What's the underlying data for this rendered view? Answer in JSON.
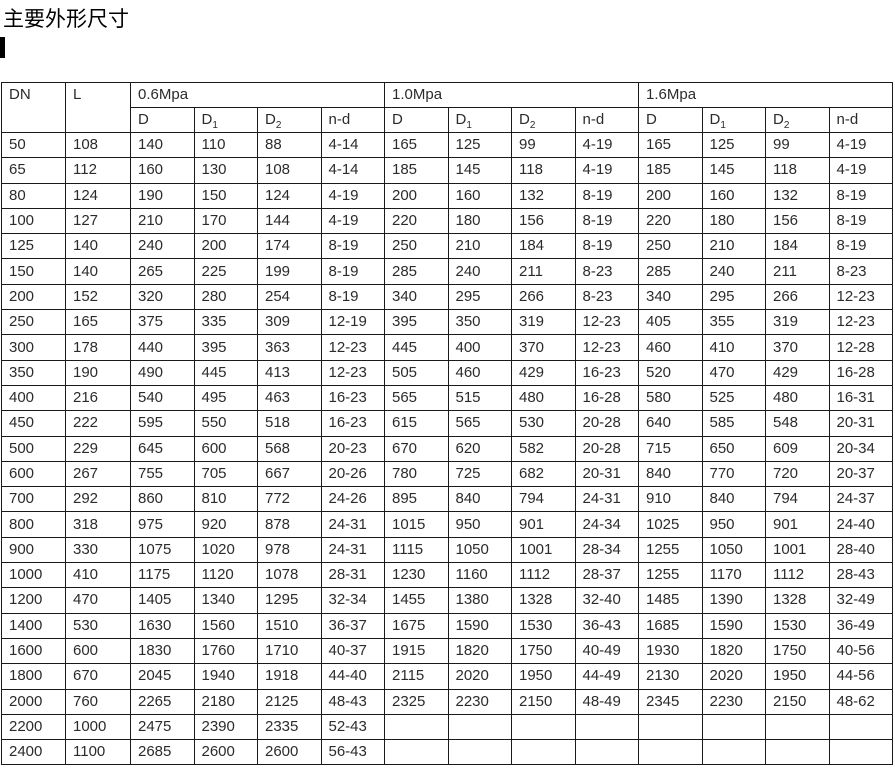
{
  "page": {
    "title": "主要外形尺寸"
  },
  "table": {
    "col_headers": {
      "dn": "DN",
      "l": "L",
      "groups": [
        {
          "label": "0.6Mpa"
        },
        {
          "label": "1.0Mpa"
        },
        {
          "label": "1.6Mpa"
        }
      ],
      "sub_cols": [
        {
          "base": "D",
          "sub": ""
        },
        {
          "base": "D",
          "sub": "1"
        },
        {
          "base": "D",
          "sub": "2"
        },
        {
          "base": "n-d",
          "sub": ""
        }
      ]
    },
    "rows": [
      [
        "50",
        "108",
        "140",
        "110",
        "88",
        "4-14",
        "165",
        "125",
        "99",
        "4-19",
        "165",
        "125",
        "99",
        "4-19"
      ],
      [
        "65",
        "112",
        "160",
        "130",
        "108",
        "4-14",
        "185",
        "145",
        "118",
        "4-19",
        "185",
        "145",
        "118",
        "4-19"
      ],
      [
        "80",
        "124",
        "190",
        "150",
        "124",
        "4-19",
        "200",
        "160",
        "132",
        "8-19",
        "200",
        "160",
        "132",
        "8-19"
      ],
      [
        "100",
        "127",
        "210",
        "170",
        "144",
        "4-19",
        "220",
        "180",
        "156",
        "8-19",
        "220",
        "180",
        "156",
        "8-19"
      ],
      [
        "125",
        "140",
        "240",
        "200",
        "174",
        "8-19",
        "250",
        "210",
        "184",
        "8-19",
        "250",
        "210",
        "184",
        "8-19"
      ],
      [
        "150",
        "140",
        "265",
        "225",
        "199",
        "8-19",
        "285",
        "240",
        "211",
        "8-23",
        "285",
        "240",
        "211",
        "8-23"
      ],
      [
        "200",
        "152",
        "320",
        "280",
        "254",
        "8-19",
        "340",
        "295",
        "266",
        "8-23",
        "340",
        "295",
        "266",
        "12-23"
      ],
      [
        "250",
        "165",
        "375",
        "335",
        "309",
        "12-19",
        "395",
        "350",
        "319",
        "12-23",
        "405",
        "355",
        "319",
        "12-23"
      ],
      [
        "300",
        "178",
        "440",
        "395",
        "363",
        "12-23",
        "445",
        "400",
        "370",
        "12-23",
        "460",
        "410",
        "370",
        "12-28"
      ],
      [
        "350",
        "190",
        "490",
        "445",
        "413",
        "12-23",
        "505",
        "460",
        "429",
        "16-23",
        "520",
        "470",
        "429",
        "16-28"
      ],
      [
        "400",
        "216",
        "540",
        "495",
        "463",
        "16-23",
        "565",
        "515",
        "480",
        "16-28",
        "580",
        "525",
        "480",
        "16-31"
      ],
      [
        "450",
        "222",
        "595",
        "550",
        "518",
        "16-23",
        "615",
        "565",
        "530",
        "20-28",
        "640",
        "585",
        "548",
        "20-31"
      ],
      [
        "500",
        "229",
        "645",
        "600",
        "568",
        "20-23",
        "670",
        "620",
        "582",
        "20-28",
        "715",
        "650",
        "609",
        "20-34"
      ],
      [
        "600",
        "267",
        "755",
        "705",
        "667",
        "20-26",
        "780",
        "725",
        "682",
        "20-31",
        "840",
        "770",
        "720",
        "20-37"
      ],
      [
        "700",
        "292",
        "860",
        "810",
        "772",
        "24-26",
        "895",
        "840",
        "794",
        "24-31",
        "910",
        "840",
        "794",
        "24-37"
      ],
      [
        "800",
        "318",
        "975",
        "920",
        "878",
        "24-31",
        "1015",
        "950",
        "901",
        "24-34",
        "1025",
        "950",
        "901",
        "24-40"
      ],
      [
        "900",
        "330",
        "1075",
        "1020",
        "978",
        "24-31",
        "1115",
        "1050",
        "1001",
        "28-34",
        "1255",
        "1050",
        "1001",
        "28-40"
      ],
      [
        "1000",
        "410",
        "1175",
        "1120",
        "1078",
        "28-31",
        "1230",
        "1160",
        "1112",
        "28-37",
        "1255",
        "1170",
        "1112",
        "28-43"
      ],
      [
        "1200",
        "470",
        "1405",
        "1340",
        "1295",
        "32-34",
        "1455",
        "1380",
        "1328",
        "32-40",
        "1485",
        "1390",
        "1328",
        "32-49"
      ],
      [
        "1400",
        "530",
        "1630",
        "1560",
        "1510",
        "36-37",
        "1675",
        "1590",
        "1530",
        "36-43",
        "1685",
        "1590",
        "1530",
        "36-49"
      ],
      [
        "1600",
        "600",
        "1830",
        "1760",
        "1710",
        "40-37",
        "1915",
        "1820",
        "1750",
        "40-49",
        "1930",
        "1820",
        "1750",
        "40-56"
      ],
      [
        "1800",
        "670",
        "2045",
        "1940",
        "1918",
        "44-40",
        "2115",
        "2020",
        "1950",
        "44-49",
        "2130",
        "2020",
        "1950",
        "44-56"
      ],
      [
        "2000",
        "760",
        "2265",
        "2180",
        "2125",
        "48-43",
        "2325",
        "2230",
        "2150",
        "48-49",
        "2345",
        "2230",
        "2150",
        "48-62"
      ],
      [
        "2200",
        "1000",
        "2475",
        "2390",
        "2335",
        "52-43",
        "",
        "",
        "",
        "",
        "",
        "",
        "",
        ""
      ],
      [
        "2400",
        "1100",
        "2685",
        "2600",
        "2600",
        "56-43",
        "",
        "",
        "",
        "",
        "",
        "",
        "",
        ""
      ]
    ]
  }
}
